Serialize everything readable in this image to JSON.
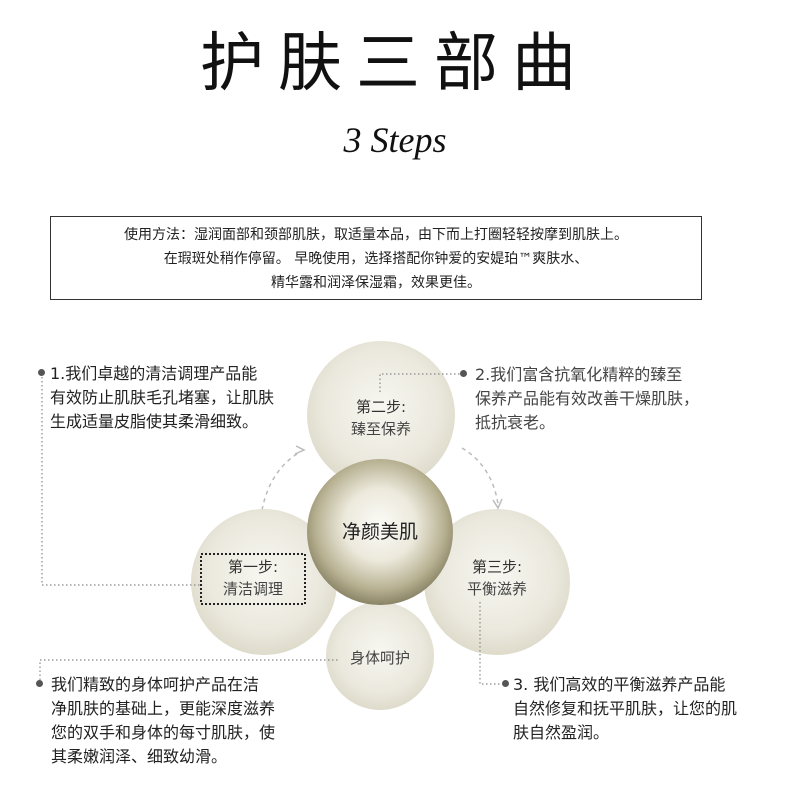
{
  "header": {
    "title": "护肤三部曲",
    "subtitle": "3 Steps"
  },
  "usage": {
    "line1": "使用方法：湿润面部和颈部肌肤，取适量本品，由下而上打圈轻轻按摩到肌肤上。",
    "line2": "在瑕斑处稍作停留。 早晚使用，选择搭配你钟爱的安媞珀™爽肤水、",
    "line3": "精华露和润泽保湿霜，效果更佳。"
  },
  "diagram": {
    "center": "净颜美肌",
    "step1": {
      "label": "第一步:",
      "name": "清洁调理"
    },
    "step2": {
      "label": "第二步:",
      "name": "臻至保养"
    },
    "step3": {
      "label": "第三步:",
      "name": "平衡滋养"
    },
    "body": "身体呵护"
  },
  "notes": {
    "note1": [
      "1.我们卓越的清洁调理产品能",
      "有效防止肌肤毛孔堵塞，让肌肤",
      "生成适量皮脂使其柔滑细致。"
    ],
    "note2": [
      "2.我们富含抗氧化精粹的臻至",
      "保养产品能有效改善干燥肌肤，",
      "抵抗衰老。"
    ],
    "note3": [
      "3. 我们高效的平衡滋养产品能",
      "自然修复和抚平肌肤，让您的肌",
      "肤自然盈润。"
    ],
    "note4": [
      "我们精致的身体呵护产品在洁",
      "净肌肤的基础上，更能深度滋养",
      "您的双手和身体的每寸肌肤，使",
      "其柔嫩润泽、细致幼滑。"
    ]
  },
  "colors": {
    "circle_light": "#ebe9de",
    "circle_edge": "#d8d4c2",
    "center_dark": "#8a8466",
    "text_dark": "#222222",
    "dotted_line": "#888888"
  }
}
